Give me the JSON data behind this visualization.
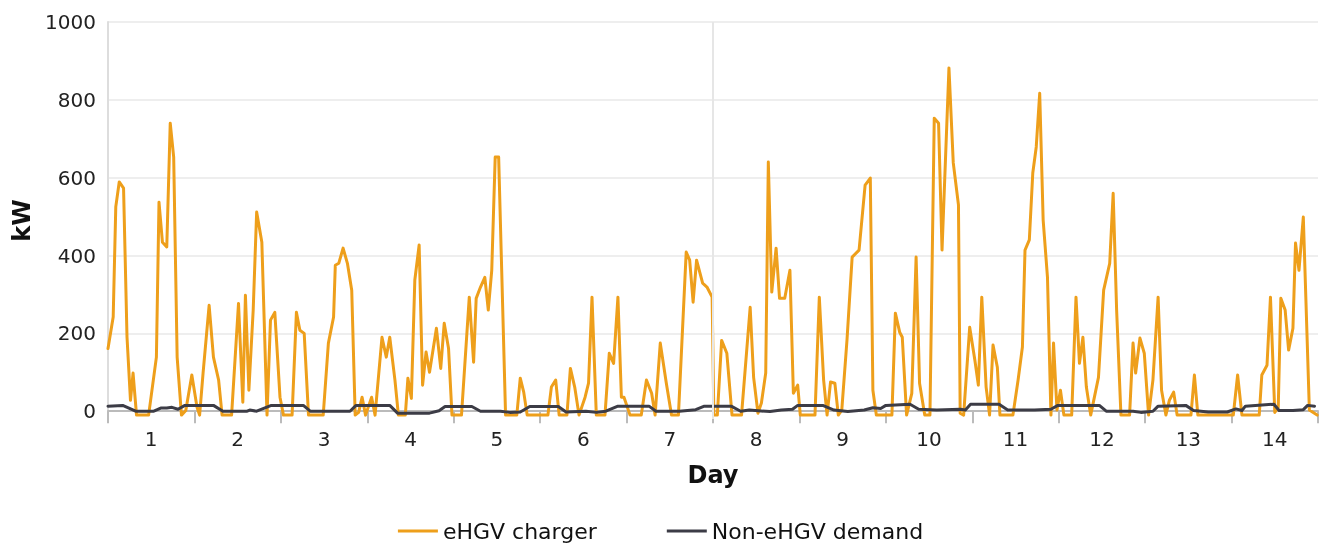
{
  "chart_data": {
    "type": "line",
    "xlabel": "Day",
    "ylabel": "kW",
    "xlim": [
      0,
      14
    ],
    "ylim": [
      -20,
      1000
    ],
    "yticks": [
      0,
      200,
      400,
      600,
      800,
      1000
    ],
    "xticks": [
      {
        "value": 0,
        "label": null
      },
      {
        "value": 0.5,
        "label": "1"
      },
      {
        "value": 1,
        "label": null
      },
      {
        "value": 1.5,
        "label": "2"
      },
      {
        "value": 2,
        "label": null
      },
      {
        "value": 2.5,
        "label": "3"
      },
      {
        "value": 3,
        "label": null
      },
      {
        "value": 3.5,
        "label": "4"
      },
      {
        "value": 4,
        "label": null
      },
      {
        "value": 4.5,
        "label": "5"
      },
      {
        "value": 5,
        "label": null
      },
      {
        "value": 5.5,
        "label": "6"
      },
      {
        "value": 6,
        "label": null
      },
      {
        "value": 6.5,
        "label": "7"
      },
      {
        "value": 7,
        "label": null
      },
      {
        "value": 7.5,
        "label": "8"
      },
      {
        "value": 8,
        "label": null
      },
      {
        "value": 8.5,
        "label": "9"
      },
      {
        "value": 9,
        "label": null
      },
      {
        "value": 9.5,
        "label": "10"
      },
      {
        "value": 10,
        "label": null
      },
      {
        "value": 10.5,
        "label": "11"
      },
      {
        "value": 11,
        "label": null
      },
      {
        "value": 11.5,
        "label": "12"
      },
      {
        "value": 12,
        "label": null
      },
      {
        "value": 12.5,
        "label": "13"
      },
      {
        "value": 13,
        "label": null
      },
      {
        "value": 13.5,
        "label": "14"
      },
      {
        "value": 14,
        "label": null
      }
    ],
    "grid": "y",
    "legend": "bottom",
    "marker": "none",
    "line_style": "solid",
    "ref_lines": [
      {
        "axis": "x",
        "value": 7,
        "color": "#e6e6e6"
      }
    ],
    "series": [
      {
        "name": "eHGV charger",
        "color": "#ee9f1b",
        "x": [
          0,
          0.06,
          0.09,
          0.13,
          0.18,
          0.22,
          0.26,
          0.29,
          0.33,
          0.47,
          0.56,
          0.59,
          0.63,
          0.68,
          0.72,
          0.76,
          0.8,
          0.85,
          0.9,
          0.97,
          1.03,
          1.06,
          1.1,
          1.17,
          1.22,
          1.28,
          1.32,
          1.43,
          1.51,
          1.56,
          1.59,
          1.63,
          1.68,
          1.72,
          1.78,
          1.84,
          1.88,
          1.93,
          1.99,
          2.03,
          2.13,
          2.18,
          2.22,
          2.27,
          2.32,
          2.49,
          2.55,
          2.61,
          2.63,
          2.67,
          2.72,
          2.77,
          2.82,
          2.86,
          2.9,
          2.94,
          2.98,
          3.05,
          3.09,
          3.17,
          3.22,
          3.26,
          3.32,
          3.36,
          3.44,
          3.47,
          3.51,
          3.55,
          3.6,
          3.64,
          3.68,
          3.72,
          3.8,
          3.85,
          3.89,
          3.94,
          3.98,
          4.09,
          4.18,
          4.23,
          4.26,
          4.31,
          4.36,
          4.4,
          4.44,
          4.48,
          4.52,
          4.6,
          4.73,
          4.77,
          4.81,
          4.85,
          5.09,
          5.13,
          5.18,
          5.22,
          5.31,
          5.35,
          5.4,
          5.45,
          5.52,
          5.56,
          5.6,
          5.65,
          5.75,
          5.8,
          5.85,
          5.9,
          5.94,
          5.97,
          6.04,
          6.17,
          6.23,
          6.29,
          6.33,
          6.39,
          6.46,
          6.52,
          6.6,
          6.69,
          6.73,
          6.77,
          6.81,
          6.88,
          6.93,
          6.99,
          7.01,
          7.05,
          7.1,
          7.16,
          7.22,
          7.33,
          7.43,
          7.47,
          7.52,
          7.56,
          7.61,
          7.64,
          7.68,
          7.73,
          7.77,
          7.83,
          7.89,
          7.93,
          7.98,
          8.01,
          8.18,
          8.23,
          8.28,
          8.32,
          8.36,
          8.41,
          8.45,
          8.49,
          8.55,
          8.61,
          8.69,
          8.76,
          8.82,
          8.85,
          8.89,
          9.07,
          9.11,
          9.16,
          9.19,
          9.24,
          9.3,
          9.35,
          9.39,
          9.45,
          9.51,
          9.56,
          9.61,
          9.65,
          9.73,
          9.78,
          9.84,
          9.86,
          9.9,
          9.97,
          10.03,
          10.07,
          10.11,
          10.16,
          10.2,
          10.24,
          10.29,
          10.32,
          10.47,
          10.53,
          10.58,
          10.61,
          10.66,
          10.7,
          10.74,
          10.78,
          10.82,
          10.87,
          10.91,
          10.94,
          10.98,
          11.02,
          11.06,
          11.15,
          11.2,
          11.24,
          11.28,
          11.32,
          11.37,
          11.46,
          11.52,
          11.59,
          11.63,
          11.67,
          11.72,
          11.82,
          11.86,
          11.89,
          11.94,
          11.99,
          12.04,
          12.09,
          12.15,
          12.19,
          12.24,
          12.28,
          12.33,
          12.37,
          12.53,
          12.57,
          12.61,
          13.02,
          13.07,
          13.12,
          13.32,
          13.35,
          13.41,
          13.45,
          13.5,
          13.54,
          13.57,
          13.62,
          13.66,
          13.71,
          13.74,
          13.78,
          13.83,
          13.9,
          13.99
        ],
        "values": [
          161,
          242,
          525,
          589,
          573,
          190,
          28,
          98,
          -10,
          -10,
          139,
          537,
          434,
          422,
          740,
          653,
          139,
          -10,
          2,
          93,
          10,
          -10,
          98,
          272,
          139,
          80,
          -10,
          -10,
          277,
          23,
          298,
          54,
          260,
          512,
          434,
          -10,
          234,
          254,
          36,
          -10,
          -10,
          254,
          208,
          200,
          -10,
          -10,
          175,
          242,
          375,
          380,
          419,
          380,
          311,
          -10,
          -3,
          36,
          -10,
          36,
          -10,
          190,
          139,
          190,
          80,
          -10,
          -10,
          85,
          33,
          337,
          427,
          67,
          152,
          100,
          213,
          110,
          226,
          162,
          -10,
          -10,
          293,
          126,
          290,
          319,
          344,
          260,
          362,
          653,
          653,
          -10,
          -10,
          85,
          49,
          -10,
          -10,
          62,
          80,
          -10,
          -10,
          110,
          62,
          -10,
          36,
          72,
          293,
          -10,
          -10,
          149,
          123,
          293,
          36,
          36,
          -10,
          -10,
          80,
          46,
          -10,
          175,
          72,
          -10,
          -10,
          409,
          388,
          280,
          388,
          329,
          319,
          293,
          -10,
          -10,
          182,
          149,
          -10,
          -10,
          267,
          87,
          -5,
          21,
          98,
          640,
          306,
          419,
          290,
          290,
          362,
          46,
          67,
          -10,
          -10,
          293,
          80,
          -10,
          75,
          72,
          -10,
          3,
          182,
          396,
          414,
          581,
          599,
          54,
          -10,
          -10,
          252,
          203,
          190,
          -10,
          46,
          396,
          72,
          -10,
          -10,
          753,
          740,
          414,
          882,
          638,
          530,
          -5,
          -10,
          216,
          131,
          67,
          293,
          62,
          -10,
          170,
          113,
          -10,
          -10,
          80,
          165,
          414,
          440,
          612,
          679,
          817,
          491,
          344,
          -10,
          175,
          3,
          54,
          -10,
          -10,
          293,
          123,
          190,
          62,
          -10,
          87,
          311,
          380,
          560,
          260,
          -10,
          -10,
          175,
          98,
          188,
          149,
          -10,
          80,
          293,
          54,
          -10,
          28,
          49,
          -10,
          -10,
          93,
          -10,
          -10,
          93,
          -10,
          -10,
          93,
          118,
          293,
          -3,
          10,
          290,
          260,
          157,
          213,
          432,
          362,
          499,
          3,
          -10
        ]
      },
      {
        "name": "Non-eHGV demand",
        "color": "#3c3c46",
        "x": [
          0,
          0.17,
          0.32,
          0.53,
          0.61,
          0.68,
          0.74,
          0.81,
          0.89,
          1.22,
          1.33,
          1.61,
          1.64,
          1.72,
          1.89,
          2.26,
          2.34,
          2.8,
          2.87,
          3.26,
          3.35,
          3.72,
          3.83,
          3.9,
          4.21,
          4.31,
          4.54,
          4.65,
          4.77,
          4.88,
          5.21,
          5.3,
          5.53,
          5.65,
          5.76,
          5.9,
          6.26,
          6.34,
          6.61,
          6.8,
          6.9,
          7.21,
          7.32,
          7.42,
          7.66,
          7.79,
          7.92,
          7.98,
          8.27,
          8.4,
          8.56,
          8.75,
          8.85,
          8.94,
          9,
          9.28,
          9.38,
          9.59,
          9.86,
          9.92,
          9.98,
          10.31,
          10.41,
          10.57,
          10.72,
          10.91,
          10.99,
          11.13,
          11.47,
          11.55,
          11.86,
          11.95,
          12.09,
          12.15,
          12.47,
          12.56,
          12.73,
          12.95,
          13.05,
          13.12,
          13.16,
          13.49,
          13.55,
          13.71,
          13.83,
          13.88,
          13.96
        ],
        "values": [
          13,
          15,
          0,
          0,
          8,
          8,
          10,
          5,
          15,
          15,
          0,
          0,
          3,
          0,
          15,
          15,
          0,
          0,
          15,
          15,
          -5,
          -5,
          1,
          12,
          12,
          0,
          0,
          -3,
          -2,
          12,
          12,
          -2,
          0,
          -3,
          0,
          13,
          13,
          0,
          0,
          4,
          13,
          13,
          0,
          3,
          -1,
          3,
          5,
          15,
          15,
          3,
          -1,
          3,
          9,
          7,
          15,
          18,
          5,
          3,
          5,
          3,
          18,
          18,
          3,
          3,
          3,
          5,
          15,
          15,
          15,
          0,
          0,
          -3,
          0,
          13,
          15,
          2,
          -2,
          -2,
          6,
          2,
          13,
          18,
          2,
          2,
          4,
          15,
          13
        ]
      }
    ]
  }
}
